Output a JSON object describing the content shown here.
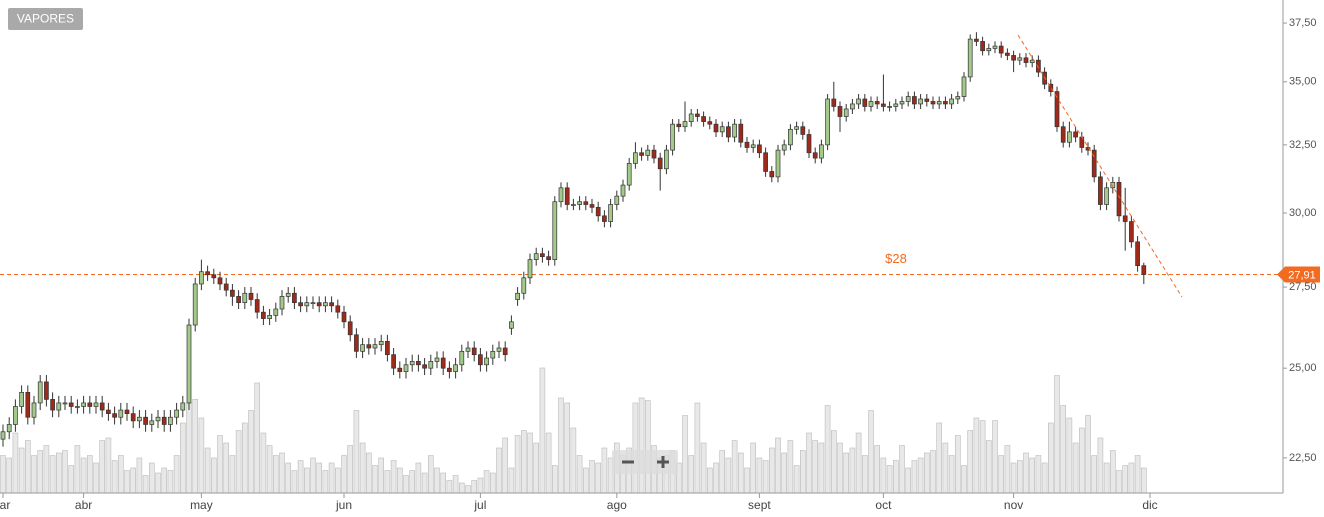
{
  "chart_data": {
    "type": "candlestick",
    "symbol": "VAPORES",
    "log_scale": true,
    "grid": false,
    "ylim": [
      21.59,
      38.53
    ],
    "yticks": [
      {
        "value": 22.5,
        "label": "22,50"
      },
      {
        "value": 25,
        "label": "25,00"
      },
      {
        "value": 27.5,
        "label": "27,50"
      },
      {
        "value": 30,
        "label": "30,00"
      },
      {
        "value": 32.5,
        "label": "32,50"
      },
      {
        "value": 35,
        "label": "35,00"
      },
      {
        "value": 37.5,
        "label": "37,50"
      }
    ],
    "xticks": [
      {
        "value": 0,
        "label": "ar"
      },
      {
        "value": 13,
        "label": "abr"
      },
      {
        "value": 32,
        "label": "may"
      },
      {
        "value": 55,
        "label": "jun"
      },
      {
        "value": 77,
        "label": "jul"
      },
      {
        "value": 99,
        "label": "ago"
      },
      {
        "value": 122,
        "label": "sept"
      },
      {
        "value": 142,
        "label": "oct"
      },
      {
        "value": 163,
        "label": "nov"
      },
      {
        "value": 185,
        "label": "dic"
      }
    ],
    "up_color": "#a3c98b",
    "down_color": "#9e2a1b",
    "volume_color": "#e8e8e8",
    "hline": {
      "value": 27.91,
      "label": "$28",
      "color": "#f26b21"
    },
    "last_price": {
      "value": 27.91,
      "label": "27,91"
    },
    "ohlc": [
      [
        23.0,
        23.4,
        22.8,
        23.2
      ],
      [
        23.2,
        23.6,
        23.0,
        23.4
      ],
      [
        23.4,
        24.1,
        23.2,
        23.9
      ],
      [
        23.9,
        24.5,
        23.7,
        24.3
      ],
      [
        24.3,
        24.5,
        23.4,
        23.6
      ],
      [
        23.6,
        24.2,
        23.4,
        24.0
      ],
      [
        24.0,
        24.8,
        23.8,
        24.6
      ],
      [
        24.6,
        24.8,
        23.9,
        24.1
      ],
      [
        24.1,
        24.3,
        23.6,
        23.8
      ],
      [
        23.8,
        24.2,
        23.6,
        24.0
      ],
      [
        24.0,
        24.2,
        23.8,
        24.0
      ],
      [
        24.0,
        24.2,
        23.7,
        23.9
      ],
      [
        23.9,
        24.1,
        23.7,
        23.9
      ],
      [
        23.9,
        24.2,
        23.7,
        24.0
      ],
      [
        24.0,
        24.2,
        23.7,
        23.9
      ],
      [
        23.9,
        24.2,
        23.7,
        24.0
      ],
      [
        24.0,
        24.2,
        23.6,
        23.8
      ],
      [
        23.8,
        24.0,
        23.5,
        23.7
      ],
      [
        23.7,
        23.9,
        23.4,
        23.6
      ],
      [
        23.6,
        24.0,
        23.4,
        23.8
      ],
      [
        23.8,
        24.0,
        23.5,
        23.7
      ],
      [
        23.7,
        23.9,
        23.3,
        23.5
      ],
      [
        23.5,
        23.8,
        23.3,
        23.6
      ],
      [
        23.6,
        23.8,
        23.2,
        23.4
      ],
      [
        23.4,
        23.7,
        23.2,
        23.5
      ],
      [
        23.5,
        23.8,
        23.3,
        23.6
      ],
      [
        23.6,
        23.8,
        23.2,
        23.4
      ],
      [
        23.4,
        23.8,
        23.2,
        23.6
      ],
      [
        23.6,
        24.0,
        23.4,
        23.8
      ],
      [
        23.8,
        24.2,
        23.6,
        24.0
      ],
      [
        24.0,
        26.5,
        23.8,
        26.3
      ],
      [
        26.3,
        27.8,
        26.1,
        27.6
      ],
      [
        27.6,
        28.4,
        27.4,
        28.0
      ],
      [
        28.0,
        28.2,
        27.7,
        27.9
      ],
      [
        27.9,
        28.1,
        27.6,
        27.8
      ],
      [
        27.8,
        28.0,
        27.4,
        27.6
      ],
      [
        27.6,
        27.8,
        27.2,
        27.4
      ],
      [
        27.4,
        27.6,
        26.9,
        27.2
      ],
      [
        27.2,
        27.4,
        26.8,
        27.0
      ],
      [
        27.0,
        27.5,
        26.8,
        27.3
      ],
      [
        27.3,
        27.5,
        26.9,
        27.1
      ],
      [
        27.1,
        27.3,
        26.5,
        26.7
      ],
      [
        26.7,
        26.9,
        26.3,
        26.5
      ],
      [
        26.5,
        26.8,
        26.3,
        26.6
      ],
      [
        26.6,
        27.0,
        26.4,
        26.8
      ],
      [
        26.8,
        27.4,
        26.6,
        27.2
      ],
      [
        27.2,
        27.5,
        27.0,
        27.3
      ],
      [
        27.3,
        27.5,
        26.8,
        27.0
      ],
      [
        27.0,
        27.2,
        26.7,
        26.9
      ],
      [
        26.9,
        27.2,
        26.7,
        27.0
      ],
      [
        27.0,
        27.2,
        26.8,
        27.0
      ],
      [
        27.0,
        27.2,
        26.7,
        26.9
      ],
      [
        26.9,
        27.2,
        26.7,
        27.0
      ],
      [
        27.0,
        27.2,
        26.7,
        26.9
      ],
      [
        26.9,
        27.1,
        26.5,
        26.7
      ],
      [
        26.7,
        26.9,
        26.2,
        26.4
      ],
      [
        26.4,
        26.6,
        25.8,
        26.0
      ],
      [
        26.0,
        26.2,
        25.3,
        25.5
      ],
      [
        25.5,
        25.9,
        25.3,
        25.7
      ],
      [
        25.7,
        25.9,
        25.4,
        25.6
      ],
      [
        25.6,
        25.9,
        25.4,
        25.7
      ],
      [
        25.7,
        26.0,
        25.5,
        25.8
      ],
      [
        25.8,
        26.0,
        25.2,
        25.4
      ],
      [
        25.4,
        25.6,
        24.8,
        25.0
      ],
      [
        25.0,
        25.2,
        24.7,
        24.9
      ],
      [
        24.9,
        25.3,
        24.7,
        25.1
      ],
      [
        25.1,
        25.4,
        24.9,
        25.2
      ],
      [
        25.2,
        25.4,
        24.9,
        25.1
      ],
      [
        25.1,
        25.3,
        24.8,
        25.0
      ],
      [
        25.0,
        25.4,
        24.8,
        25.2
      ],
      [
        25.2,
        25.5,
        25.0,
        25.3
      ],
      [
        25.3,
        25.5,
        24.8,
        25.0
      ],
      [
        25.0,
        25.2,
        24.7,
        24.9
      ],
      [
        24.9,
        25.3,
        24.7,
        25.1
      ],
      [
        25.1,
        25.7,
        24.9,
        25.5
      ],
      [
        25.5,
        25.8,
        25.3,
        25.6
      ],
      [
        25.6,
        25.8,
        25.2,
        25.4
      ],
      [
        25.4,
        25.6,
        24.9,
        25.1
      ],
      [
        25.1,
        25.5,
        24.9,
        25.3
      ],
      [
        25.3,
        25.7,
        25.1,
        25.5
      ],
      [
        25.5,
        25.8,
        25.3,
        25.6
      ],
      [
        25.6,
        25.8,
        25.2,
        25.4
      ],
      [
        26.2,
        26.6,
        26.0,
        26.4
      ],
      [
        27.1,
        27.5,
        26.9,
        27.3
      ],
      [
        27.3,
        28.0,
        27.1,
        27.8
      ],
      [
        27.8,
        28.6,
        27.6,
        28.4
      ],
      [
        28.4,
        28.8,
        28.2,
        28.6
      ],
      [
        28.6,
        28.8,
        28.3,
        28.5
      ],
      [
        28.5,
        28.7,
        28.2,
        28.4
      ],
      [
        28.4,
        30.6,
        28.2,
        30.4
      ],
      [
        30.4,
        31.1,
        30.2,
        30.9
      ],
      [
        30.9,
        31.1,
        30.1,
        30.3
      ],
      [
        30.3,
        30.5,
        30.1,
        30.3
      ],
      [
        30.3,
        30.6,
        30.1,
        30.4
      ],
      [
        30.4,
        30.6,
        30.1,
        30.3
      ],
      [
        30.3,
        30.5,
        30.0,
        30.2
      ],
      [
        30.2,
        30.4,
        29.7,
        29.9
      ],
      [
        29.9,
        30.1,
        29.5,
        29.7
      ],
      [
        29.7,
        30.5,
        29.5,
        30.3
      ],
      [
        30.3,
        30.8,
        30.1,
        30.6
      ],
      [
        30.6,
        31.2,
        30.4,
        31.0
      ],
      [
        31.0,
        32.0,
        30.8,
        31.8
      ],
      [
        31.8,
        32.6,
        31.6,
        32.2
      ],
      [
        32.2,
        32.4,
        31.9,
        32.1
      ],
      [
        32.1,
        32.5,
        31.9,
        32.3
      ],
      [
        32.3,
        32.5,
        31.8,
        32.0
      ],
      [
        32.0,
        32.2,
        30.8,
        31.6
      ],
      [
        31.6,
        32.5,
        31.4,
        32.3
      ],
      [
        32.3,
        33.5,
        32.1,
        33.3
      ],
      [
        33.3,
        33.5,
        33.0,
        33.2
      ],
      [
        33.2,
        34.2,
        33.0,
        33.4
      ],
      [
        33.4,
        33.9,
        33.2,
        33.7
      ],
      [
        33.7,
        33.9,
        33.4,
        33.6
      ],
      [
        33.6,
        33.8,
        33.2,
        33.4
      ],
      [
        33.4,
        33.6,
        33.1,
        33.3
      ],
      [
        33.3,
        33.5,
        32.8,
        33.0
      ],
      [
        33.0,
        33.4,
        32.8,
        33.2
      ],
      [
        33.2,
        33.4,
        32.6,
        32.8
      ],
      [
        32.8,
        33.5,
        32.6,
        33.3
      ],
      [
        33.3,
        33.5,
        32.4,
        32.6
      ],
      [
        32.6,
        32.8,
        32.2,
        32.4
      ],
      [
        32.4,
        32.7,
        32.2,
        32.5
      ],
      [
        32.5,
        32.7,
        32.0,
        32.2
      ],
      [
        32.2,
        32.4,
        31.3,
        31.5
      ],
      [
        31.5,
        31.7,
        31.1,
        31.3
      ],
      [
        31.3,
        32.5,
        31.1,
        32.3
      ],
      [
        32.3,
        32.7,
        32.1,
        32.5
      ],
      [
        32.5,
        33.3,
        32.3,
        33.1
      ],
      [
        33.1,
        33.4,
        32.9,
        33.2
      ],
      [
        33.2,
        33.4,
        32.7,
        32.9
      ],
      [
        32.9,
        33.1,
        32.0,
        32.2
      ],
      [
        32.2,
        32.4,
        31.8,
        32.0
      ],
      [
        32.0,
        32.7,
        31.8,
        32.5
      ],
      [
        32.5,
        34.5,
        32.3,
        34.3
      ],
      [
        34.3,
        35.0,
        33.8,
        34.0
      ],
      [
        34.0,
        34.2,
        33.0,
        33.6
      ],
      [
        33.6,
        34.1,
        33.4,
        33.9
      ],
      [
        33.9,
        34.3,
        33.7,
        34.1
      ],
      [
        34.1,
        34.5,
        33.9,
        34.3
      ],
      [
        34.3,
        34.5,
        33.8,
        34.0
      ],
      [
        34.0,
        34.4,
        33.8,
        34.2
      ],
      [
        34.2,
        34.4,
        33.9,
        34.1
      ],
      [
        34.1,
        35.3,
        33.8,
        34.0
      ],
      [
        34.0,
        34.2,
        33.8,
        34.0
      ],
      [
        34.0,
        34.3,
        33.8,
        34.1
      ],
      [
        34.1,
        34.4,
        33.9,
        34.2
      ],
      [
        34.2,
        34.6,
        34.0,
        34.4
      ],
      [
        34.4,
        34.6,
        33.9,
        34.1
      ],
      [
        34.1,
        34.5,
        33.9,
        34.3
      ],
      [
        34.3,
        34.5,
        34.0,
        34.2
      ],
      [
        34.2,
        34.4,
        33.9,
        34.1
      ],
      [
        34.1,
        34.4,
        33.9,
        34.2
      ],
      [
        34.2,
        34.4,
        33.9,
        34.1
      ],
      [
        34.1,
        34.5,
        33.9,
        34.3
      ],
      [
        34.3,
        34.6,
        34.1,
        34.4
      ],
      [
        34.4,
        35.4,
        34.2,
        35.2
      ],
      [
        35.2,
        37.0,
        35.0,
        36.8
      ],
      [
        36.8,
        37.1,
        36.5,
        36.7
      ],
      [
        36.7,
        36.9,
        36.1,
        36.3
      ],
      [
        36.3,
        36.6,
        36.1,
        36.4
      ],
      [
        36.4,
        36.7,
        36.2,
        36.5
      ],
      [
        36.5,
        36.7,
        36.0,
        36.2
      ],
      [
        36.2,
        36.4,
        35.9,
        36.1
      ],
      [
        36.1,
        36.3,
        35.4,
        35.9
      ],
      [
        35.9,
        36.2,
        35.7,
        36.0
      ],
      [
        36.0,
        36.2,
        35.6,
        35.8
      ],
      [
        35.8,
        36.1,
        35.6,
        35.9
      ],
      [
        35.9,
        36.1,
        35.2,
        35.4
      ],
      [
        35.4,
        35.6,
        34.7,
        34.9
      ],
      [
        34.9,
        35.1,
        34.4,
        34.6
      ],
      [
        34.6,
        34.8,
        33.0,
        33.2
      ],
      [
        33.2,
        33.4,
        32.4,
        32.6
      ],
      [
        32.6,
        33.4,
        32.4,
        33.0
      ],
      [
        33.0,
        33.2,
        32.6,
        32.8
      ],
      [
        32.8,
        33.0,
        32.2,
        32.4
      ],
      [
        32.4,
        32.6,
        32.1,
        32.3
      ],
      [
        32.3,
        32.5,
        31.1,
        31.3
      ],
      [
        31.3,
        31.5,
        30.1,
        30.3
      ],
      [
        30.3,
        31.1,
        30.1,
        30.9
      ],
      [
        30.9,
        31.3,
        30.7,
        31.1
      ],
      [
        31.1,
        31.3,
        29.7,
        29.9
      ],
      [
        29.9,
        30.9,
        28.7,
        29.7
      ],
      [
        29.7,
        29.9,
        28.8,
        29.0
      ],
      [
        29.0,
        29.2,
        28.0,
        28.2
      ],
      [
        28.2,
        28.3,
        27.6,
        27.91
      ]
    ],
    "volume_lim": [
      0,
      100
    ],
    "volume": [
      30,
      28,
      48,
      36,
      42,
      30,
      34,
      38,
      30,
      32,
      34,
      22,
      38,
      28,
      30,
      24,
      42,
      44,
      26,
      30,
      18,
      20,
      28,
      14,
      24,
      16,
      20,
      18,
      30,
      56,
      72,
      75,
      60,
      36,
      28,
      46,
      40,
      30,
      50,
      56,
      66,
      88,
      48,
      38,
      30,
      32,
      24,
      18,
      26,
      20,
      28,
      24,
      18,
      24,
      20,
      30,
      38,
      66,
      40,
      32,
      22,
      28,
      18,
      26,
      20,
      14,
      18,
      24,
      16,
      30,
      20,
      16,
      10,
      14,
      8,
      6,
      10,
      12,
      18,
      16,
      36,
      44,
      20,
      46,
      50,
      48,
      40,
      100,
      48,
      22,
      76,
      72,
      52,
      30,
      20,
      26,
      24,
      36,
      28,
      40,
      30,
      36,
      72,
      76,
      74,
      38,
      28,
      30,
      34,
      24,
      62,
      30,
      72,
      40,
      20,
      24,
      34,
      28,
      42,
      32,
      20,
      40,
      28,
      26,
      36,
      44,
      32,
      42,
      22,
      34,
      48,
      42,
      40,
      70,
      50,
      40,
      32,
      36,
      48,
      30,
      66,
      38,
      28,
      22,
      26,
      38,
      20,
      26,
      28,
      32,
      34,
      56,
      40,
      30,
      46,
      22,
      50,
      60,
      58,
      42,
      58,
      30,
      38,
      24,
      26,
      32,
      28,
      30,
      24,
      56,
      94,
      70,
      60,
      40,
      52,
      62,
      30,
      44,
      24,
      34,
      18,
      22,
      24,
      30,
      20
    ]
  }
}
